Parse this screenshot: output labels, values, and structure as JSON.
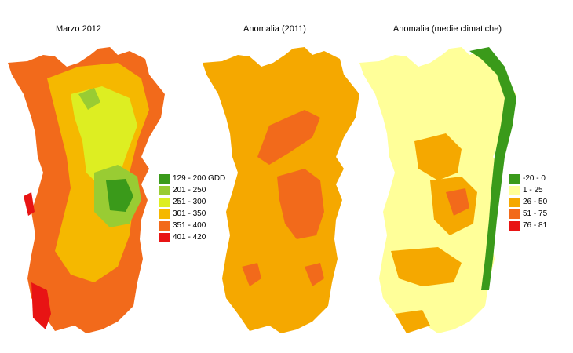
{
  "panels": [
    {
      "title": "Marzo 2012"
    },
    {
      "title": "Anomalia (2011)"
    },
    {
      "title": "Anomalia (medie climatiche)"
    }
  ],
  "legend_gdd": [
    {
      "label": "129 - 200 GDD",
      "color": "#3a9a1a"
    },
    {
      "label": "201 - 250",
      "color": "#99cc33"
    },
    {
      "label": "251 - 300",
      "color": "#ddee22"
    },
    {
      "label": "301 - 350",
      "color": "#f5b800"
    },
    {
      "label": "351 - 400",
      "color": "#f26a1b"
    },
    {
      "label": "401 - 420",
      "color": "#e81414"
    }
  ],
  "legend_anomaly": [
    {
      "label": "-20 - 0",
      "color": "#3a9a1a"
    },
    {
      "label": "1 - 25",
      "color": "#ffff99"
    },
    {
      "label": "26 - 50",
      "color": "#f5a800"
    },
    {
      "label": "51 - 75",
      "color": "#f26a1b"
    },
    {
      "label": "76 - 81",
      "color": "#e81414"
    }
  ]
}
